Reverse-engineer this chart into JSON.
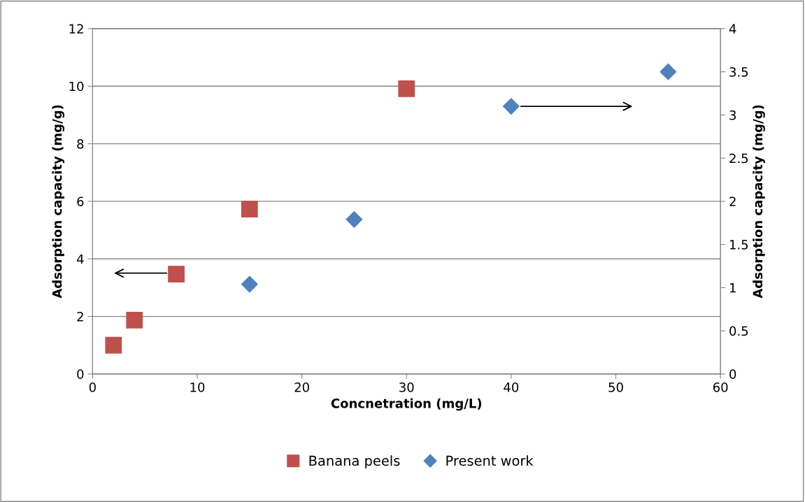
{
  "chart_data": {
    "type": "scatter",
    "xlabel": "Concnetration (mg/L)",
    "ylabel": "Adsorption capacity (mg/g)",
    "y2label": "Adsorption capacity (mg/g)",
    "xlim": [
      0,
      60
    ],
    "xticks": [
      0,
      10,
      20,
      30,
      40,
      50,
      60
    ],
    "ylim": [
      0,
      12
    ],
    "yticks": [
      0,
      2,
      4,
      6,
      8,
      10,
      12
    ],
    "y2lim": [
      0,
      4
    ],
    "y2ticks": [
      0,
      0.5,
      1,
      1.5,
      2,
      2.5,
      3,
      3.5,
      4
    ],
    "grid": "y",
    "legend": "bottom",
    "series": [
      {
        "name": "Banana peels",
        "color": "#c0504d",
        "marker": "square",
        "x": [
          2,
          4,
          8,
          15,
          30
        ],
        "values": [
          1.0,
          1.87,
          3.47,
          5.73,
          9.91
        ]
      },
      {
        "name": "Present work",
        "color": "#4f81bd",
        "marker": "diamond",
        "axis": "y2",
        "x": [
          15,
          25,
          40,
          55
        ],
        "values": [
          1.04,
          1.79,
          3.1,
          3.5
        ]
      }
    ]
  }
}
